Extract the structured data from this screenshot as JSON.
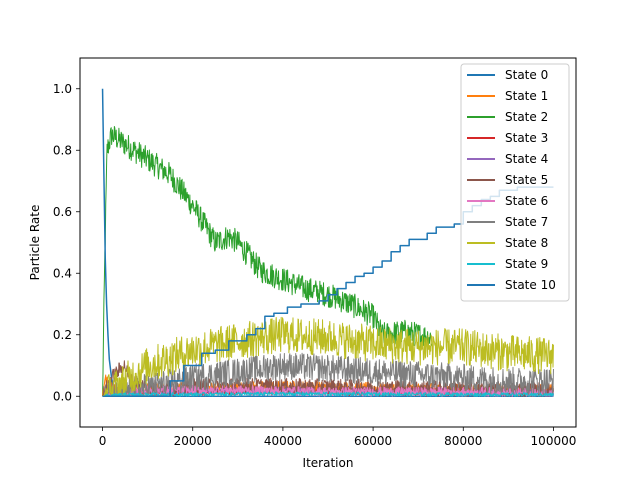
{
  "chart_data": {
    "type": "line",
    "title": "",
    "xlabel": "Iteration",
    "ylabel": "Particle Rate",
    "xlim": [
      -5000,
      105000
    ],
    "ylim": [
      -0.1,
      1.1
    ],
    "x_ticks": [
      0,
      20000,
      40000,
      60000,
      80000,
      100000
    ],
    "x_tick_labels": [
      "0",
      "20000",
      "40000",
      "60000",
      "80000",
      "100000"
    ],
    "y_ticks": [
      0.0,
      0.2,
      0.4,
      0.6,
      0.8,
      1.0
    ],
    "y_tick_labels": [
      "0.0",
      "0.2",
      "0.4",
      "0.6",
      "0.8",
      "1.0"
    ],
    "grid": false,
    "legend_position": "top-right",
    "series": [
      {
        "name": "State 0",
        "color": "#1f77b4",
        "points": [
          [
            0,
            1.0
          ],
          [
            300,
            0.72
          ],
          [
            600,
            0.45
          ],
          [
            900,
            0.3
          ],
          [
            1200,
            0.2
          ],
          [
            1500,
            0.12
          ],
          [
            2000,
            0.06
          ],
          [
            2500,
            0.02
          ],
          [
            3000,
            0.01
          ],
          [
            4000,
            0.0
          ],
          [
            100000,
            0.0
          ]
        ],
        "noise": 0.0
      },
      {
        "name": "State 1",
        "color": "#ff7f0e",
        "points": [
          [
            0,
            0.0
          ],
          [
            500,
            0.06
          ],
          [
            1500,
            0.03
          ],
          [
            5000,
            0.02
          ],
          [
            20000,
            0.025
          ],
          [
            40000,
            0.03
          ],
          [
            60000,
            0.025
          ],
          [
            80000,
            0.02
          ],
          [
            100000,
            0.02
          ]
        ],
        "noise": 0.02
      },
      {
        "name": "State 2",
        "color": "#2ca02c",
        "points": [
          [
            0,
            0.0
          ],
          [
            500,
            0.45
          ],
          [
            1000,
            0.8
          ],
          [
            2000,
            0.85
          ],
          [
            5000,
            0.82
          ],
          [
            10000,
            0.77
          ],
          [
            15000,
            0.72
          ],
          [
            20000,
            0.62
          ],
          [
            25000,
            0.5
          ],
          [
            28000,
            0.52
          ],
          [
            30000,
            0.5
          ],
          [
            35000,
            0.41
          ],
          [
            40000,
            0.38
          ],
          [
            45000,
            0.35
          ],
          [
            50000,
            0.33
          ],
          [
            55000,
            0.3
          ],
          [
            60000,
            0.26
          ],
          [
            62000,
            0.2
          ],
          [
            67000,
            0.21
          ],
          [
            70000,
            0.2
          ],
          [
            73000,
            0.19
          ]
        ],
        "noise": 0.04
      },
      {
        "name": "State 3",
        "color": "#d62728",
        "points": [
          [
            0,
            0.0
          ],
          [
            5000,
            0.01
          ],
          [
            40000,
            0.015
          ],
          [
            70000,
            0.01
          ],
          [
            100000,
            0.01
          ]
        ],
        "noise": 0.01
      },
      {
        "name": "State 4",
        "color": "#9467bd",
        "points": [
          [
            0,
            0.0
          ],
          [
            10000,
            0.015
          ],
          [
            40000,
            0.02
          ],
          [
            70000,
            0.015
          ],
          [
            100000,
            0.01
          ]
        ],
        "noise": 0.012
      },
      {
        "name": "State 5",
        "color": "#8c564b",
        "points": [
          [
            0,
            0.0
          ],
          [
            2000,
            0.06
          ],
          [
            4000,
            0.09
          ],
          [
            5000,
            0.1
          ],
          [
            6000,
            0.05
          ],
          [
            10000,
            0.03
          ],
          [
            30000,
            0.035
          ],
          [
            60000,
            0.03
          ],
          [
            100000,
            0.02
          ]
        ],
        "noise": 0.025
      },
      {
        "name": "State 6",
        "color": "#e377c2",
        "points": [
          [
            0,
            0.0
          ],
          [
            10000,
            0.02
          ],
          [
            30000,
            0.02
          ],
          [
            50000,
            0.015
          ],
          [
            80000,
            0.015
          ],
          [
            100000,
            0.01
          ]
        ],
        "noise": 0.015
      },
      {
        "name": "State 7",
        "color": "#7f7f7f",
        "points": [
          [
            0,
            0.0
          ],
          [
            10000,
            0.03
          ],
          [
            20000,
            0.06
          ],
          [
            30000,
            0.08
          ],
          [
            40000,
            0.1
          ],
          [
            50000,
            0.09
          ],
          [
            60000,
            0.08
          ],
          [
            70000,
            0.07
          ],
          [
            80000,
            0.06
          ],
          [
            90000,
            0.05
          ],
          [
            100000,
            0.05
          ]
        ],
        "noise": 0.045
      },
      {
        "name": "State 8",
        "color": "#bcbd22",
        "points": [
          [
            0,
            0.0
          ],
          [
            2000,
            0.02
          ],
          [
            5000,
            0.05
          ],
          [
            10000,
            0.1
          ],
          [
            20000,
            0.15
          ],
          [
            30000,
            0.18
          ],
          [
            40000,
            0.2
          ],
          [
            50000,
            0.19
          ],
          [
            60000,
            0.17
          ],
          [
            70000,
            0.16
          ],
          [
            80000,
            0.16
          ],
          [
            90000,
            0.14
          ],
          [
            100000,
            0.13
          ]
        ],
        "noise": 0.06
      },
      {
        "name": "State 9",
        "color": "#17becf",
        "points": [
          [
            0,
            0.0
          ],
          [
            5000,
            0.005
          ],
          [
            40000,
            0.008
          ],
          [
            100000,
            0.005
          ]
        ],
        "noise": 0.006
      },
      {
        "name": "State 10",
        "color": "#1f77b4",
        "step": true,
        "points": [
          [
            0,
            0.0
          ],
          [
            15000,
            0.0
          ],
          [
            15000,
            0.05
          ],
          [
            18000,
            0.05
          ],
          [
            18000,
            0.1
          ],
          [
            22000,
            0.1
          ],
          [
            22000,
            0.14
          ],
          [
            25000,
            0.14
          ],
          [
            25000,
            0.15
          ],
          [
            28000,
            0.15
          ],
          [
            28000,
            0.18
          ],
          [
            32000,
            0.18
          ],
          [
            32000,
            0.2
          ],
          [
            34000,
            0.2
          ],
          [
            34000,
            0.22
          ],
          [
            36000,
            0.22
          ],
          [
            36000,
            0.26
          ],
          [
            38000,
            0.26
          ],
          [
            38000,
            0.27
          ],
          [
            41000,
            0.27
          ],
          [
            41000,
            0.29
          ],
          [
            44000,
            0.29
          ],
          [
            44000,
            0.3
          ],
          [
            48000,
            0.3
          ],
          [
            48000,
            0.31
          ],
          [
            50000,
            0.31
          ],
          [
            50000,
            0.33
          ],
          [
            52000,
            0.33
          ],
          [
            52000,
            0.35
          ],
          [
            54000,
            0.35
          ],
          [
            54000,
            0.37
          ],
          [
            56000,
            0.37
          ],
          [
            56000,
            0.39
          ],
          [
            58000,
            0.39
          ],
          [
            58000,
            0.4
          ],
          [
            60000,
            0.4
          ],
          [
            60000,
            0.42
          ],
          [
            62000,
            0.42
          ],
          [
            62000,
            0.44
          ],
          [
            64000,
            0.44
          ],
          [
            64000,
            0.47
          ],
          [
            66000,
            0.47
          ],
          [
            66000,
            0.49
          ],
          [
            68000,
            0.49
          ],
          [
            68000,
            0.51
          ],
          [
            72000,
            0.51
          ],
          [
            72000,
            0.53
          ],
          [
            74000,
            0.53
          ],
          [
            74000,
            0.55
          ],
          [
            78000,
            0.55
          ],
          [
            78000,
            0.56
          ],
          [
            80000,
            0.56
          ],
          [
            80000,
            0.6
          ],
          [
            82000,
            0.6
          ],
          [
            82000,
            0.62
          ],
          [
            84000,
            0.62
          ],
          [
            84000,
            0.64
          ],
          [
            86000,
            0.64
          ],
          [
            86000,
            0.65
          ],
          [
            88000,
            0.65
          ],
          [
            88000,
            0.67
          ],
          [
            92000,
            0.67
          ],
          [
            92000,
            0.68
          ],
          [
            100000,
            0.68
          ]
        ],
        "noise": 0.0
      }
    ]
  }
}
